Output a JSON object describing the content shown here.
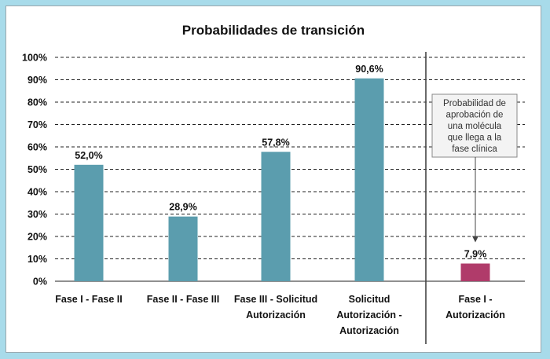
{
  "chart_data": {
    "type": "bar",
    "title": "Probabilidades  de transición",
    "ylim": [
      0,
      100
    ],
    "yticks": [
      0,
      10,
      20,
      30,
      40,
      50,
      60,
      70,
      80,
      90,
      100
    ],
    "ytick_labels": [
      "0%",
      "10%",
      "20%",
      "30%",
      "40%",
      "50%",
      "60%",
      "70%",
      "80%",
      "90%",
      "100%"
    ],
    "grid": true,
    "categories": [
      [
        "Fase I - Fase II"
      ],
      [
        "Fase II - Fase III"
      ],
      [
        "Fase III - Solicitud",
        "Autorización"
      ],
      [
        "Solicitud",
        "Autorización -",
        "Autorización"
      ],
      [
        "Fase I -",
        "Autorización"
      ]
    ],
    "values": [
      52.0,
      28.9,
      57.8,
      90.6,
      7.9
    ],
    "data_labels": [
      "52,0%",
      "28,9%",
      "57,8%",
      "90,6%",
      "7,9%"
    ],
    "colors": [
      "#5b9dae",
      "#5b9dae",
      "#5b9dae",
      "#5b9dae",
      "#b03b6a"
    ],
    "separator_after_index": 3,
    "annotation": {
      "lines": [
        "Probabilidad de",
        "aprobación de",
        "una molécula",
        "que llega a la",
        "fase clínica"
      ],
      "target_index": 4
    }
  }
}
